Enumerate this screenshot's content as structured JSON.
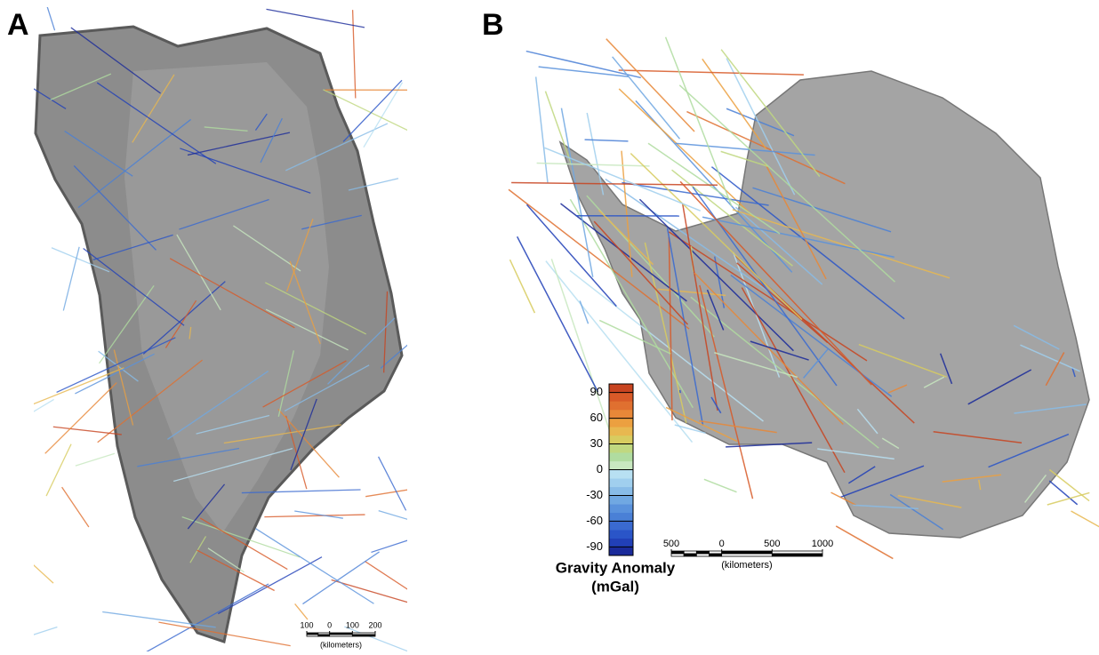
{
  "panels": [
    {
      "label": "A",
      "scale_bar": {
        "ticks": [
          {
            "value": -100,
            "label": "100"
          },
          0,
          100,
          200
        ],
        "unit": "(kilometers)"
      }
    },
    {
      "label": "B",
      "scale_bar": {
        "ticks": [
          {
            "value": -500,
            "label": "500"
          },
          0,
          500,
          1000
        ],
        "unit": "(kilometers)"
      }
    }
  ],
  "colorbar": {
    "title": "Gravity Anomaly",
    "unit": "(mGal)",
    "lim": [
      -100,
      100
    ],
    "ticks": [
      90,
      60,
      30,
      0,
      -30,
      -60,
      -90
    ],
    "colors": [
      "#1a2a9a",
      "#2140b8",
      "#2a55c8",
      "#3a6ad0",
      "#4a80d6",
      "#5a92dc",
      "#70a8e2",
      "#88bce8",
      "#a0cfee",
      "#b8e0f2",
      "#c8e8c0",
      "#b0dca0",
      "#c0d880",
      "#d8cc60",
      "#e8b850",
      "#eca040",
      "#e88838",
      "#e07030",
      "#d85a28",
      "#c84420"
    ]
  }
}
